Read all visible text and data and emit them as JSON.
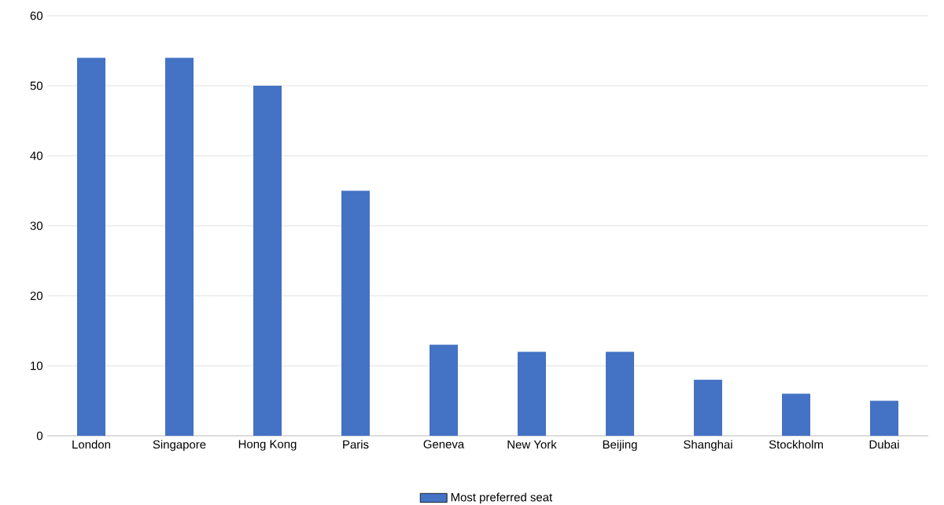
{
  "chart_data": {
    "type": "bar",
    "categories": [
      "London",
      "Singapore",
      "Hong Kong",
      "Paris",
      "Geneva",
      "New York",
      "Beijing",
      "Shanghai",
      "Stockholm",
      "Dubai"
    ],
    "series": [
      {
        "name": "Most preferred seat",
        "color": "#4472c4",
        "values": [
          54,
          54,
          50,
          35,
          13,
          12,
          12,
          8,
          6,
          5
        ]
      }
    ],
    "ylim": [
      0,
      60
    ],
    "yticks": [
      0,
      10,
      20,
      30,
      40,
      50,
      60
    ],
    "grid": "y",
    "legend": "bottom"
  }
}
